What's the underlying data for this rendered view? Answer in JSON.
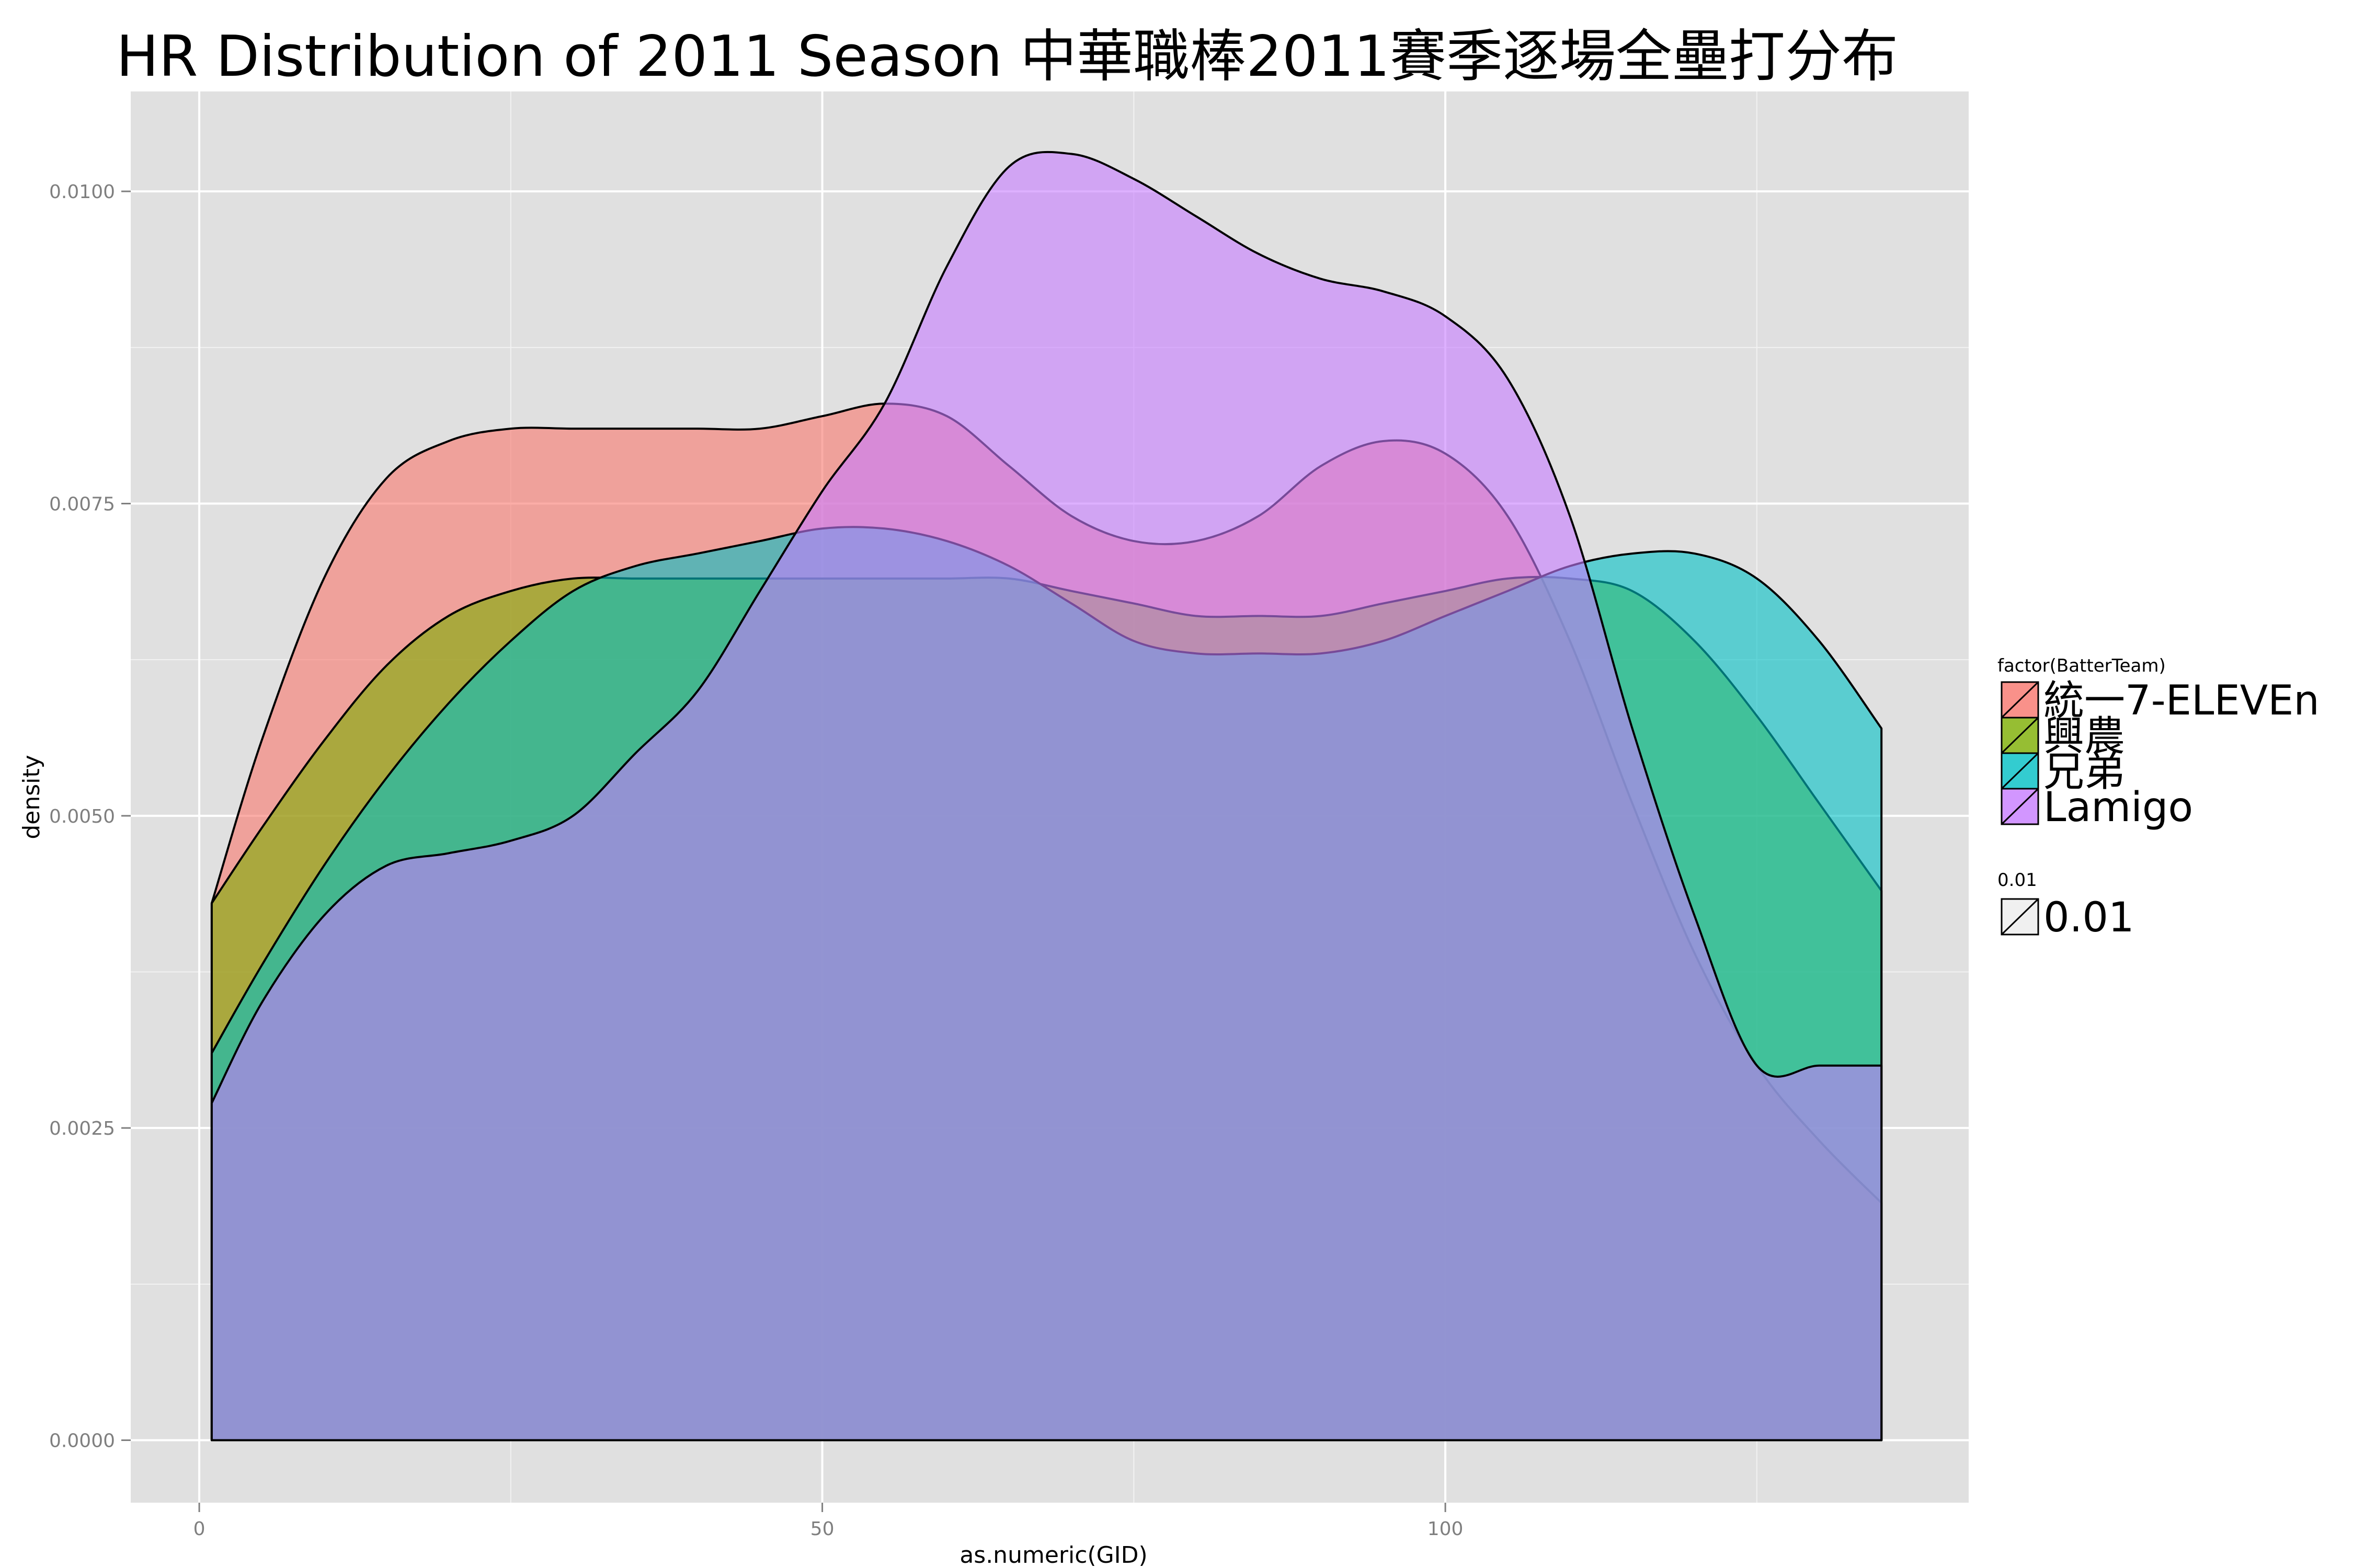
{
  "chart_data": {
    "type": "area",
    "subtype": "density",
    "title": "HR Distribution of 2011 Season 中華職棒2011賽季逐場全壘打分布",
    "xlabel": "as.numeric(GID)",
    "ylabel": "density",
    "xlim": [
      -5.5,
      142
    ],
    "ylim": [
      -0.0005,
      0.0108
    ],
    "x_ticks": [
      0,
      50,
      100
    ],
    "x_tick_labels": [
      "0",
      "50",
      "100"
    ],
    "y_ticks": [
      0.0,
      0.0025,
      0.005,
      0.0075,
      0.01
    ],
    "y_tick_labels": [
      "0.0000",
      "0.0025",
      "0.0050",
      "0.0075",
      "0.0100"
    ],
    "grid": true,
    "panel_background": "#e0e0e0",
    "grid_color": "#ffffff",
    "outline_color": "#000000",
    "fill_alpha": 0.6,
    "legend": {
      "position": "right",
      "title": "factor(BatterTeam)",
      "entries": [
        "統一7-ELEVEn",
        "興農",
        "兄弟",
        "Lamigo"
      ],
      "colors": [
        "#F8766D",
        "#7CAE00",
        "#00BFC4",
        "#C77CFF"
      ]
    },
    "alpha_legend": {
      "title": "0.01",
      "label": "0.01"
    },
    "x": [
      1,
      5,
      10,
      15,
      20,
      25,
      30,
      35,
      40,
      45,
      50,
      55,
      60,
      65,
      70,
      75,
      80,
      85,
      90,
      95,
      100,
      105,
      110,
      115,
      120,
      125,
      130,
      135,
      135
    ],
    "series": [
      {
        "name": "統一7-ELEVEn",
        "color": "#F8766D",
        "values": [
          0.0043,
          0.0056,
          0.0069,
          0.0077,
          0.008,
          0.0081,
          0.0081,
          0.0081,
          0.0081,
          0.0081,
          0.0082,
          0.0083,
          0.0082,
          0.0078,
          0.0074,
          0.0072,
          0.0072,
          0.0074,
          0.0078,
          0.008,
          0.0079,
          0.0074,
          0.0064,
          0.0051,
          0.0039,
          0.003,
          0.0024,
          0.0019,
          0.0019
        ]
      },
      {
        "name": "興農",
        "color": "#7CAE00",
        "values": [
          0.0043,
          0.0049,
          0.0056,
          0.0062,
          0.0066,
          0.0068,
          0.0069,
          0.0069,
          0.0069,
          0.0069,
          0.0069,
          0.0069,
          0.0069,
          0.0069,
          0.0068,
          0.0067,
          0.0066,
          0.0066,
          0.0066,
          0.0067,
          0.0068,
          0.0069,
          0.0069,
          0.0068,
          0.0064,
          0.0058,
          0.0051,
          0.0044,
          0.0044
        ]
      },
      {
        "name": "兄弟",
        "color": "#00BFC4",
        "values": [
          0.0031,
          0.0038,
          0.0046,
          0.0053,
          0.0059,
          0.0064,
          0.0068,
          0.007,
          0.0071,
          0.0072,
          0.0073,
          0.0073,
          0.0072,
          0.007,
          0.0067,
          0.0064,
          0.0063,
          0.0063,
          0.0063,
          0.0064,
          0.0066,
          0.0068,
          0.007,
          0.0071,
          0.0071,
          0.0069,
          0.0064,
          0.0057,
          0.0057
        ]
      },
      {
        "name": "Lamigo",
        "color": "#C77CFF",
        "values": [
          0.0027,
          0.0035,
          0.0042,
          0.0046,
          0.0047,
          0.0048,
          0.005,
          0.0055,
          0.006,
          0.0068,
          0.0076,
          0.0083,
          0.0094,
          0.0102,
          0.0103,
          0.0101,
          0.0098,
          0.0095,
          0.0093,
          0.0092,
          0.009,
          0.0085,
          0.0074,
          0.0057,
          0.0042,
          0.003,
          0.003,
          0.003,
          0.003
        ]
      }
    ]
  }
}
